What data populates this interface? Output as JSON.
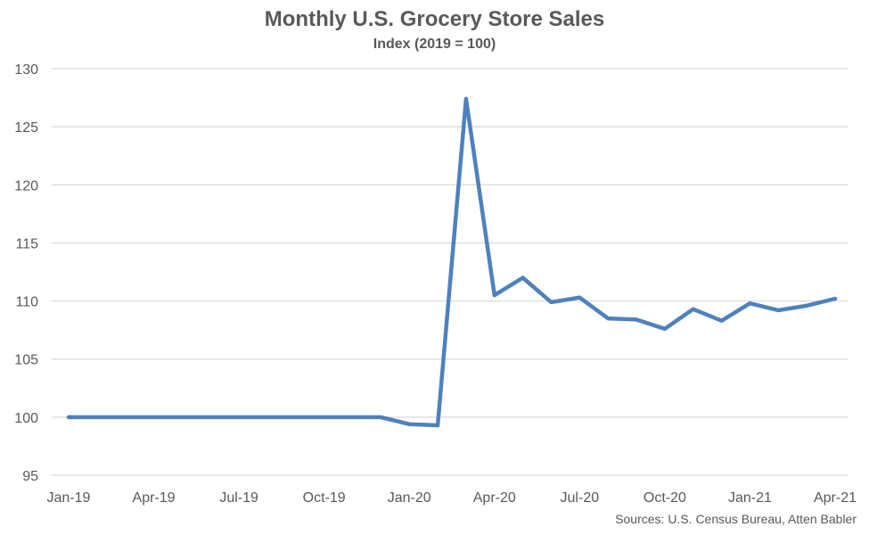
{
  "chart_data": {
    "type": "line",
    "title": "Monthly U.S. Grocery Store Sales",
    "subtitle": "Index (2019 = 100)",
    "xlabel": "",
    "ylabel": "",
    "ylim": [
      95,
      130
    ],
    "yticks": [
      95,
      100,
      105,
      110,
      115,
      120,
      125,
      130
    ],
    "x": [
      "Jan-19",
      "Feb-19",
      "Mar-19",
      "Apr-19",
      "May-19",
      "Jun-19",
      "Jul-19",
      "Aug-19",
      "Sep-19",
      "Oct-19",
      "Nov-19",
      "Dec-19",
      "Jan-20",
      "Feb-20",
      "Mar-20",
      "Apr-20",
      "May-20",
      "Jun-20",
      "Jul-20",
      "Aug-20",
      "Sep-20",
      "Oct-20",
      "Nov-20",
      "Dec-20",
      "Jan-21",
      "Feb-21",
      "Mar-21",
      "Apr-21"
    ],
    "xtick_labels": [
      "Jan-19",
      "Apr-19",
      "Jul-19",
      "Oct-19",
      "Jan-20",
      "Apr-20",
      "Jul-20",
      "Oct-20",
      "Jan-21",
      "Apr-21"
    ],
    "series": [
      {
        "color": "#4f81bd",
        "values": [
          100,
          100,
          100,
          100,
          100,
          100,
          100,
          100,
          100,
          100,
          100,
          100,
          99.4,
          99.3,
          127.4,
          110.5,
          112.0,
          109.9,
          110.3,
          108.5,
          108.4,
          107.6,
          109.3,
          108.3,
          109.8,
          109.2,
          109.6,
          110.2
        ]
      }
    ],
    "grid": true,
    "grid_color": "#d9d9d9",
    "source": "Sources: U.S. Census Bureau, Atten Babler"
  }
}
